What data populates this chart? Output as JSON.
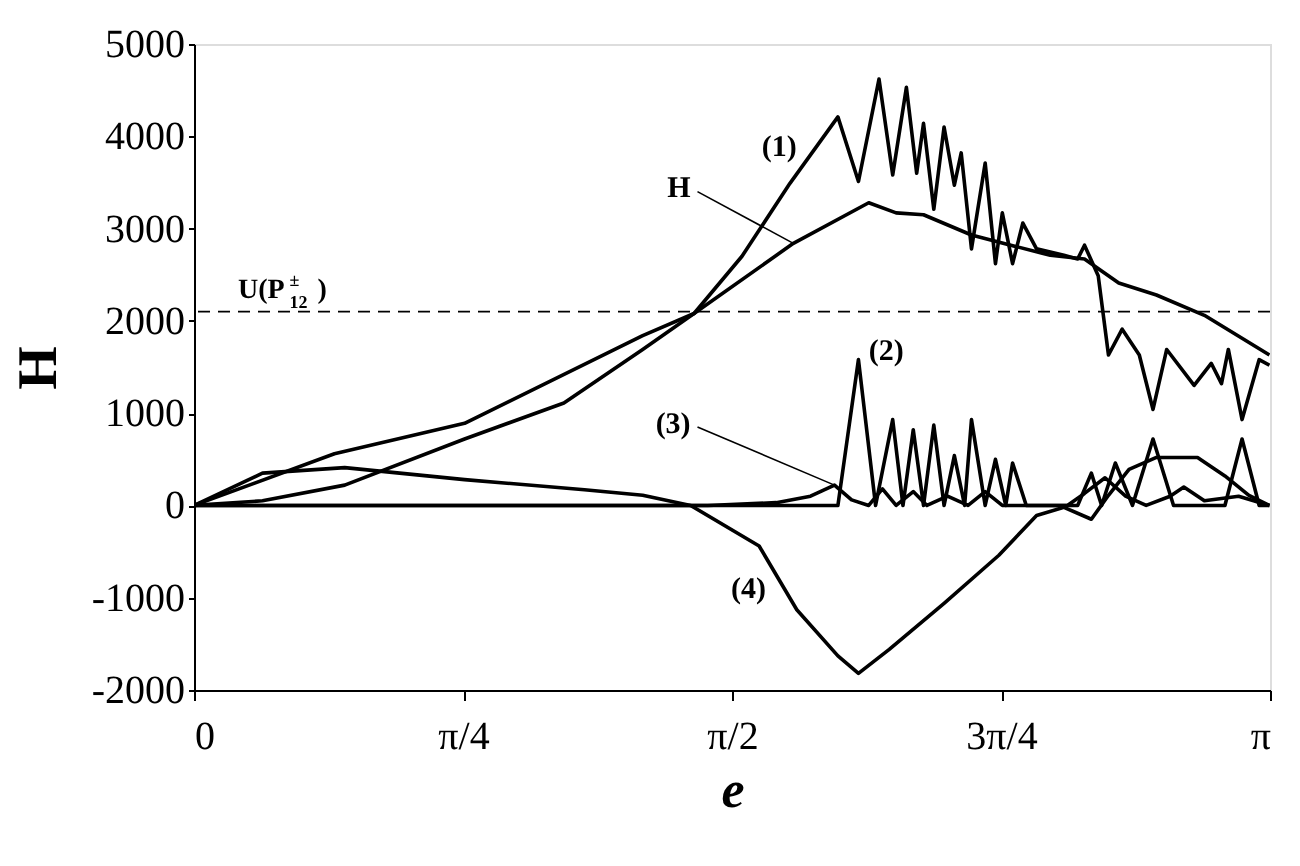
{
  "chart_data": {
    "type": "line",
    "xlabel": "e",
    "ylabel": "H",
    "xlim": [
      0,
      3.14159
    ],
    "ylim": [
      -2000,
      5000
    ],
    "xticks": [
      0,
      {
        "value": 0.785398,
        "label": "π/4"
      },
      {
        "value": 1.570796,
        "label": "π/2"
      },
      {
        "value": 2.356194,
        "label": "3π/4"
      },
      {
        "value": 3.14159,
        "label": "π"
      }
    ],
    "yticks": [
      -2000,
      -1000,
      0,
      1000,
      2000,
      3000,
      4000,
      5000
    ],
    "grid": false,
    "legend": false,
    "marker": "none",
    "line_style": "solid",
    "ref_lines": [
      {
        "axis": "y",
        "value": 2100,
        "label": "U(P$^{±}$$_{12}$)",
        "line_style": "dashed",
        "color": "#000000"
      }
    ],
    "series": [
      {
        "name": "(1)",
        "color": "#000000",
        "x": [
          0,
          0.2,
          0.44,
          0.79,
          1.08,
          1.31,
          1.46,
          1.6,
          1.74,
          1.88,
          1.94,
          2.0,
          2.04,
          2.08,
          2.11,
          2.13,
          2.16,
          2.19,
          2.22,
          2.24,
          2.27,
          2.31,
          2.34,
          2.36,
          2.39,
          2.42,
          2.46,
          2.54,
          2.58,
          2.6,
          2.64,
          2.67,
          2.71,
          2.76,
          2.8,
          2.84,
          2.92,
          2.97,
          3.0,
          3.02,
          3.06,
          3.11,
          3.14
        ],
        "values": [
          0,
          50,
          220,
          720,
          1110,
          1690,
          2080,
          2700,
          3490,
          4210,
          3510,
          4620,
          3580,
          4530,
          3600,
          4140,
          3210,
          4100,
          3470,
          3820,
          2780,
          3710,
          2620,
          3170,
          2620,
          3060,
          2780,
          2710,
          2670,
          2820,
          2490,
          1630,
          1910,
          1630,
          1040,
          1690,
          1300,
          1540,
          1320,
          1690,
          930,
          1580,
          1520
        ]
      },
      {
        "name": "H",
        "color": "#000000",
        "x": [
          0,
          0.41,
          0.79,
          1.31,
          1.46,
          1.75,
          1.97,
          2.05,
          2.13,
          2.27,
          2.5,
          2.6,
          2.7,
          2.81,
          2.95,
          3.14
        ],
        "values": [
          0,
          560,
          890,
          1840,
          2080,
          2840,
          3280,
          3170,
          3150,
          2930,
          2710,
          2670,
          2410,
          2280,
          2060,
          1630
        ]
      },
      {
        "name": "(2)",
        "color": "#000000",
        "x": [
          0,
          1.8,
          1.88,
          1.94,
          1.99,
          2.04,
          2.07,
          2.1,
          2.13,
          2.16,
          2.19,
          2.22,
          2.25,
          2.27,
          2.31,
          2.34,
          2.37,
          2.39,
          2.43,
          2.58,
          2.62,
          2.65,
          2.69,
          2.74,
          2.8,
          2.86,
          3.01,
          3.06,
          3.11,
          3.14
        ],
        "values": [
          0,
          0,
          0,
          1580,
          0,
          930,
          0,
          820,
          0,
          870,
          0,
          540,
          0,
          930,
          0,
          500,
          0,
          460,
          0,
          0,
          350,
          0,
          460,
          0,
          720,
          0,
          0,
          720,
          0,
          0
        ]
      },
      {
        "name": "(3)",
        "color": "#000000",
        "x": [
          0,
          1.5,
          1.7,
          1.8,
          1.87,
          1.92,
          1.97,
          2.01,
          2.05,
          2.1,
          2.14,
          2.2,
          2.26,
          2.31,
          2.36,
          2.45,
          2.55,
          2.6,
          2.66,
          2.72,
          2.78,
          2.85,
          2.89,
          2.95,
          3.05,
          3.14
        ],
        "values": [
          0,
          0,
          30,
          100,
          220,
          60,
          0,
          180,
          0,
          150,
          0,
          100,
          0,
          150,
          0,
          0,
          0,
          130,
          300,
          100,
          0,
          100,
          200,
          50,
          100,
          0
        ]
      },
      {
        "name": "(4)",
        "color": "#000000",
        "x": [
          0,
          0.2,
          0.44,
          0.79,
          1.14,
          1.31,
          1.45,
          1.65,
          1.76,
          1.88,
          1.94,
          2.03,
          2.19,
          2.35,
          2.46,
          2.54,
          2.62,
          2.67,
          2.73,
          2.81,
          2.93,
          3.01,
          3.08,
          3.14
        ],
        "values": [
          0,
          350,
          410,
          280,
          170,
          110,
          0,
          -440,
          -1130,
          -1630,
          -1820,
          -1560,
          -1060,
          -540,
          -110,
          -20,
          -150,
          110,
          390,
          520,
          520,
          320,
          110,
          0
        ]
      }
    ]
  }
}
